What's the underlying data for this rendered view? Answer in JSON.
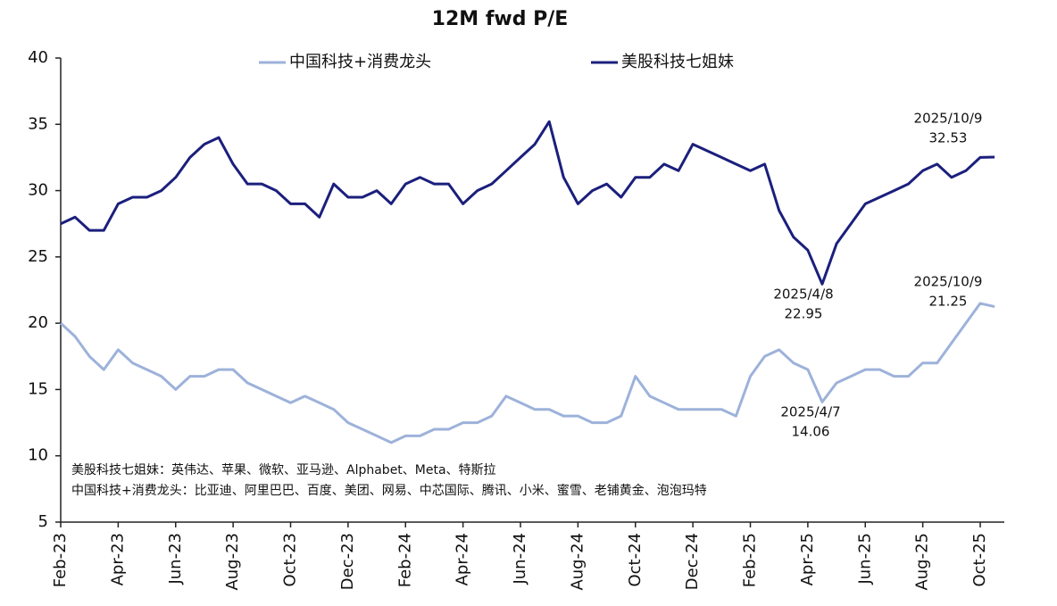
{
  "chart_data": {
    "type": "line",
    "title": "12M fwd P/E",
    "categories": [
      "Feb-23",
      null,
      null,
      null,
      "Apr-23",
      null,
      null,
      null,
      "Jun-23",
      null,
      null,
      null,
      "Aug-23",
      null,
      null,
      null,
      "Oct-23",
      null,
      null,
      null,
      "Dec-23",
      null,
      null,
      null,
      "Feb-24",
      null,
      null,
      null,
      "Apr-24",
      null,
      null,
      null,
      "Jun-24",
      null,
      null,
      null,
      "Aug-24",
      null,
      null,
      null,
      "Oct-24",
      null,
      null,
      null,
      "Dec-24",
      null,
      null,
      null,
      "Feb-25",
      null,
      null,
      null,
      "Apr-25",
      null,
      null,
      null,
      "Jun-25",
      null,
      null,
      null,
      "Aug-25",
      null,
      null,
      null,
      "Oct-25",
      null
    ],
    "series": [
      {
        "name": "中国科技+消费龙头",
        "color": "#9db2da",
        "values": [
          20,
          19,
          17.5,
          16.5,
          18,
          17,
          16.5,
          16,
          15,
          16,
          16,
          16.5,
          16.5,
          15.5,
          15,
          14.5,
          14,
          14.5,
          14,
          13.5,
          12.5,
          12,
          11.5,
          11,
          11.5,
          11.5,
          12,
          12,
          12.5,
          12.5,
          13,
          14.5,
          14,
          13.5,
          13.5,
          13,
          13,
          12.5,
          12.5,
          13,
          16,
          14.5,
          14,
          13.5,
          13.5,
          13.5,
          13.5,
          13,
          16,
          17.5,
          18,
          17,
          16.5,
          14.06,
          15.5,
          16,
          16.5,
          16.5,
          16,
          16,
          17,
          17,
          18.5,
          20,
          21.5,
          21.25
        ]
      },
      {
        "name": "美股科技七姐妹",
        "color": "#1b1f7c",
        "values": [
          27.5,
          28,
          27,
          27,
          29,
          29.5,
          29.5,
          30,
          31,
          32.5,
          33.5,
          34,
          32,
          30.5,
          30.5,
          30,
          29,
          29,
          28,
          30.5,
          29.5,
          29.5,
          30,
          29,
          30.5,
          31,
          30.5,
          30.5,
          29,
          30,
          30.5,
          31.5,
          32.5,
          33.5,
          35.2,
          31,
          29,
          30,
          30.5,
          29.5,
          31,
          31,
          32,
          31.5,
          33.5,
          33,
          32.5,
          32,
          31.5,
          32,
          28.5,
          26.5,
          25.5,
          22.95,
          26,
          27.5,
          29,
          29.5,
          30,
          30.5,
          31.5,
          32,
          31,
          31.5,
          32.5,
          32.53
        ]
      }
    ],
    "annotations": [
      "2025/10/9",
      "2025/4/8",
      "2025/4/7",
      "2025/10/9"
    ],
    "notes": [
      "美股科技七姐妹：英伟达、苹果、微软、亚马逊、Alphabet、Meta、特斯拉",
      "中国科技+消费龙头：比亚迪、阿里巴巴、百度、美团、网易、中芯国际、腾讯、小米、蜜雪、老铺黄金、泡泡玛特"
    ],
    "ylim": [
      5,
      40
    ],
    "yticks": [
      5,
      10,
      15,
      20,
      25,
      30,
      35,
      40
    ],
    "grid": false,
    "legend": "top"
  }
}
